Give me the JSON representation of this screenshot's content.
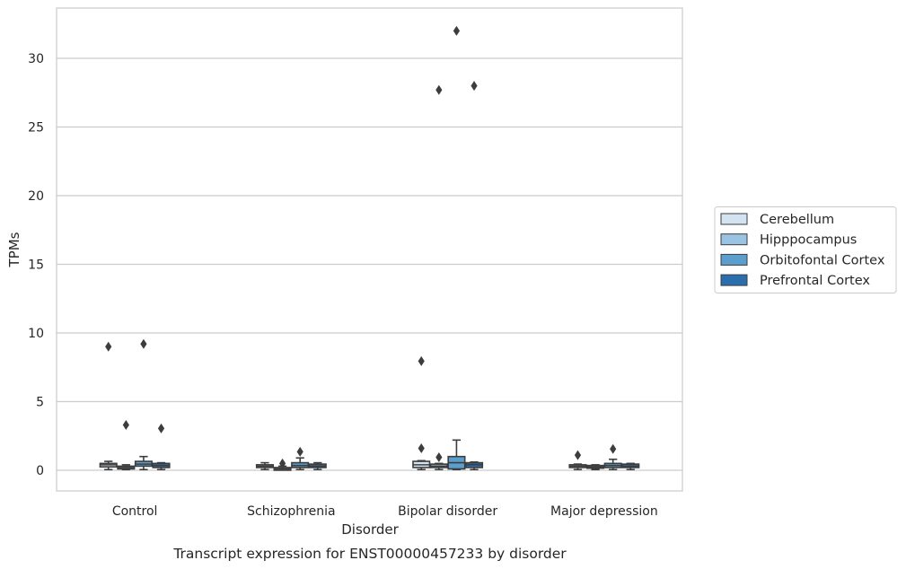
{
  "chart_data": {
    "type": "box",
    "caption": "Transcript expression for ENST00000457233 by disorder",
    "xlabel": "Disorder",
    "ylabel": "TPMs",
    "ylim": [
      -1.6,
      33.5
    ],
    "yticks": [
      0,
      5,
      10,
      15,
      20,
      25,
      30
    ],
    "grid": true,
    "legend_position": "right",
    "categories": [
      "Control",
      "Schizophrenia",
      "Bipolar disorder",
      "Major depression"
    ],
    "series": [
      {
        "name": "Cerebellum",
        "color": "#d4e3f1",
        "boxes": [
          {
            "whislo": 0.05,
            "q1": 0.25,
            "med": 0.4,
            "q3": 0.5,
            "whishi": 0.65,
            "fliers": [
              9.0
            ]
          },
          {
            "whislo": 0.05,
            "q1": 0.2,
            "med": 0.3,
            "q3": 0.4,
            "whishi": 0.55,
            "fliers": []
          },
          {
            "whislo": 0.05,
            "q1": 0.2,
            "med": 0.4,
            "q3": 0.65,
            "whishi": 0.7,
            "fliers": [
              1.6,
              7.95
            ]
          },
          {
            "whislo": 0.05,
            "q1": 0.2,
            "med": 0.3,
            "q3": 0.4,
            "whishi": 0.45,
            "fliers": [
              1.1
            ]
          }
        ]
      },
      {
        "name": "Hipppocampus",
        "color": "#9ac4e1",
        "boxes": [
          {
            "whislo": 0.05,
            "q1": 0.1,
            "med": 0.2,
            "q3": 0.3,
            "whishi": 0.4,
            "fliers": [
              3.3
            ]
          },
          {
            "whislo": 0.05,
            "q1": 0.05,
            "med": 0.1,
            "q3": 0.2,
            "whishi": 0.3,
            "fliers": [
              0.5
            ]
          },
          {
            "whislo": 0.05,
            "q1": 0.2,
            "med": 0.3,
            "q3": 0.45,
            "whishi": 0.5,
            "fliers": [
              0.95,
              27.7
            ]
          },
          {
            "whislo": 0.05,
            "q1": 0.15,
            "med": 0.25,
            "q3": 0.35,
            "whishi": 0.4,
            "fliers": []
          }
        ]
      },
      {
        "name": "Orbitofontal Cortex",
        "color": "#5a9fcd",
        "boxes": [
          {
            "whislo": 0.05,
            "q1": 0.3,
            "med": 0.45,
            "q3": 0.65,
            "whishi": 1.0,
            "fliers": [
              9.2
            ]
          },
          {
            "whislo": 0.05,
            "q1": 0.2,
            "med": 0.35,
            "q3": 0.55,
            "whishi": 0.9,
            "fliers": [
              1.35
            ]
          },
          {
            "whislo": 0.05,
            "q1": 0.1,
            "med": 0.55,
            "q3": 1.0,
            "whishi": 2.2,
            "fliers": [
              32.0
            ]
          },
          {
            "whislo": 0.05,
            "q1": 0.2,
            "med": 0.35,
            "q3": 0.5,
            "whishi": 0.8,
            "fliers": [
              1.55
            ]
          }
        ]
      },
      {
        "name": "Prefrontal Cortex",
        "color": "#2a6ead",
        "boxes": [
          {
            "whislo": 0.05,
            "q1": 0.2,
            "med": 0.35,
            "q3": 0.5,
            "whishi": 0.55,
            "fliers": [
              3.05
            ]
          },
          {
            "whislo": 0.05,
            "q1": 0.2,
            "med": 0.3,
            "q3": 0.45,
            "whishi": 0.55,
            "fliers": []
          },
          {
            "whislo": 0.05,
            "q1": 0.2,
            "med": 0.4,
            "q3": 0.55,
            "whishi": 0.6,
            "fliers": [
              28.0
            ]
          },
          {
            "whislo": 0.05,
            "q1": 0.2,
            "med": 0.3,
            "q3": 0.45,
            "whishi": 0.5,
            "fliers": []
          }
        ]
      }
    ]
  }
}
